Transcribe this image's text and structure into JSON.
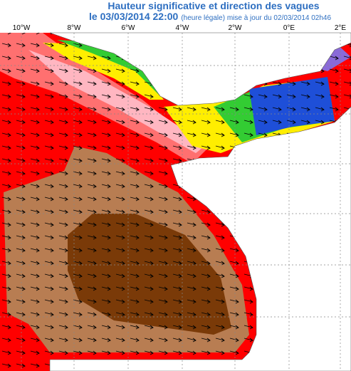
{
  "header": {
    "title": "Hauteur significative et direction des vagues",
    "date": "le 03/03/2014 22:00",
    "note": "(heure légale) mise à jour du 02/03/2014 02h46"
  },
  "map": {
    "lon_labels": [
      "10°W",
      "8°W",
      "6°W",
      "4°W",
      "2°W",
      "0°E",
      "2°E"
    ]
  }
}
